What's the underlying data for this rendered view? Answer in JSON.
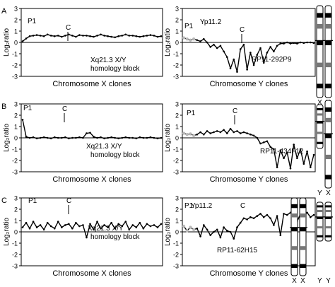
{
  "chart_data": [
    {
      "type": "line",
      "panel_letter": "A",
      "ylabel": "Log₂ratio",
      "xlabel": "Chromosome X clones",
      "ylim": [
        -3,
        3
      ],
      "yticks": [
        "3",
        "2",
        "1",
        "0",
        "-1",
        "-2",
        "-3"
      ],
      "annotations": [
        "P1",
        "C",
        "Xq21.3 X/Y",
        "homology block"
      ],
      "series": [
        {
          "values": [
            0.1,
            0.35,
            0.55,
            0.6,
            0.65,
            0.6,
            0.55,
            0.7,
            0.6,
            0.55,
            0.6,
            0.5,
            0.6,
            0.7,
            0.6,
            0.5,
            0.65,
            0.6,
            0.6,
            0.55,
            0.5,
            0.6,
            0.7,
            0.6,
            0.55,
            0.5,
            0.45,
            0.55,
            0.6,
            0.7,
            0.6,
            0.6,
            0.55,
            0.5,
            0.55,
            0.6,
            0.65,
            0.6,
            0.5,
            0.55
          ]
        }
      ]
    },
    {
      "type": "line",
      "ylabel": "Log₂ratio",
      "xlabel": "Chromosome Y clones",
      "ylim": [
        -3,
        3
      ],
      "yticks": [
        "3",
        "2",
        "1",
        "0",
        "-1",
        "-2",
        "-3"
      ],
      "annotations": [
        "P1",
        "Yp11.2",
        "C",
        "RP11-292P9"
      ],
      "series": [
        {
          "values": [
            0.4,
            0.3,
            0.2,
            0.3,
            0.2,
            0.1,
            0.3,
            0.0,
            -0.4,
            -0.2,
            -0.5,
            -0.3,
            -0.8,
            -1.3,
            -2.3,
            -1.5,
            -2.6,
            -0.6,
            -0.2,
            -2.4,
            -0.9,
            -2.0,
            -1.1,
            -0.5,
            -1.8,
            -0.9,
            -0.4,
            -0.8,
            -0.3,
            -0.1,
            -0.1,
            0.0,
            -0.1,
            -0.05,
            -0.1,
            0.0,
            -0.05,
            0.0,
            0.0,
            -0.05
          ]
        }
      ]
    },
    {
      "type": "line",
      "panel_letter": "B",
      "ylabel": "Log₂ratio",
      "xlabel": "Chromosome X clones",
      "ylim": [
        -3,
        3
      ],
      "yticks": [
        "3",
        "2",
        "1",
        "0",
        "-1",
        "-2",
        "-3"
      ],
      "annotations": [
        "P1",
        "C",
        "Xq21.3 X/Y",
        "homology block"
      ],
      "series": [
        {
          "values": [
            1.6,
            0.1,
            0.0,
            0.05,
            -0.05,
            0.0,
            0.05,
            0.0,
            -0.05,
            0.05,
            0.0,
            0.0,
            0.05,
            -0.05,
            0.0,
            0.0,
            0.05,
            0.0,
            0.4,
            0.45,
            0.1,
            0.0,
            0.05,
            -0.05,
            0.0,
            0.05,
            0.0,
            -0.05,
            0.0,
            0.05,
            0.0,
            0.0,
            -0.05,
            0.05,
            0.0,
            0.0,
            0.05,
            0.0,
            -0.05,
            0.0
          ]
        }
      ]
    },
    {
      "type": "line",
      "ylabel": "Log₂ratio",
      "xlabel": "Chromosome Y clones",
      "ylim": [
        -3,
        3
      ],
      "yticks": [
        "3",
        "2",
        "1",
        "0",
        "-1",
        "-2",
        "-3"
      ],
      "annotations": [
        "P1",
        "C",
        "RP11-434F12"
      ],
      "series": [
        {
          "values": [
            0.4,
            0.3,
            0.35,
            0.2,
            0.3,
            0.5,
            0.3,
            0.6,
            0.4,
            0.5,
            0.6,
            0.5,
            0.7,
            0.4,
            0.8,
            0.5,
            0.6,
            0.4,
            0.5,
            0.4,
            0.3,
            0.2,
            0.0,
            -0.5,
            -0.4,
            -0.3,
            -0.8,
            -1.0,
            -2.6,
            -1.1,
            -1.8,
            -1.3,
            -2.7,
            -0.6,
            -1.8,
            -1.0,
            -2.3,
            -1.2,
            -2.6,
            -1.5
          ]
        }
      ]
    },
    {
      "type": "line",
      "panel_letter": "C",
      "ylabel": "Log₂ratio",
      "xlabel": "Chromosome X clones",
      "ylim": [
        -3,
        3
      ],
      "yticks": [
        "3",
        "2",
        "1",
        "0",
        "-1",
        "-2",
        "-3"
      ],
      "annotations": [
        "P1",
        "C",
        "Xq21.3 X/Y",
        "homology block"
      ],
      "series": [
        {
          "values": [
            0.4,
            0.8,
            0.3,
            0.9,
            0.4,
            0.6,
            0.2,
            0.8,
            0.5,
            0.3,
            0.9,
            0.4,
            0.6,
            0.7,
            0.3,
            0.8,
            0.5,
            0.6,
            -0.5,
            0.7,
            0.2,
            0.9,
            0.3,
            0.6,
            0.4,
            0.8,
            0.3,
            0.7,
            0.5,
            0.9,
            0.2,
            0.6,
            0.4,
            0.8,
            0.3,
            0.7,
            0.5,
            0.6,
            0.4,
            0.7
          ]
        }
      ]
    },
    {
      "type": "line",
      "ylabel": "Log₂ratio",
      "xlabel": "Chromosome Y clones",
      "ylim": [
        -3,
        3
      ],
      "yticks": [
        "3",
        "2",
        "1",
        "0",
        "-1",
        "-2",
        "-3"
      ],
      "annotations": [
        "P1",
        "Yp11.2",
        "C",
        "RP11-62H15"
      ],
      "series": [
        {
          "values": [
            0.5,
            0.1,
            0.4,
            0.2,
            0.3,
            -0.4,
            0.6,
            0.2,
            -0.3,
            0.0,
            0.2,
            -0.5,
            0.4,
            0.1,
            0.0,
            -0.6,
            0.4,
            0.8,
            1.2,
            1.1,
            1.3,
            1.2,
            1.4,
            1.6,
            1.3,
            1.5,
            1.2,
            0.6,
            1.4,
            -0.3,
            1.6,
            1.5,
            1.7,
            1.4,
            0.9,
            1.6,
            1.5,
            1.7,
            1.3,
            1.5
          ]
        }
      ]
    }
  ],
  "ideograms": [
    {
      "labels": [
        "X",
        "X"
      ]
    },
    {
      "labels": [
        "Y",
        "X"
      ]
    },
    {
      "labels": [
        "X",
        "X",
        "Y",
        "Y"
      ]
    }
  ],
  "colors": {
    "ink": "#000000",
    "grey_points": "#b8b8b8",
    "paper": "#ffffff"
  }
}
